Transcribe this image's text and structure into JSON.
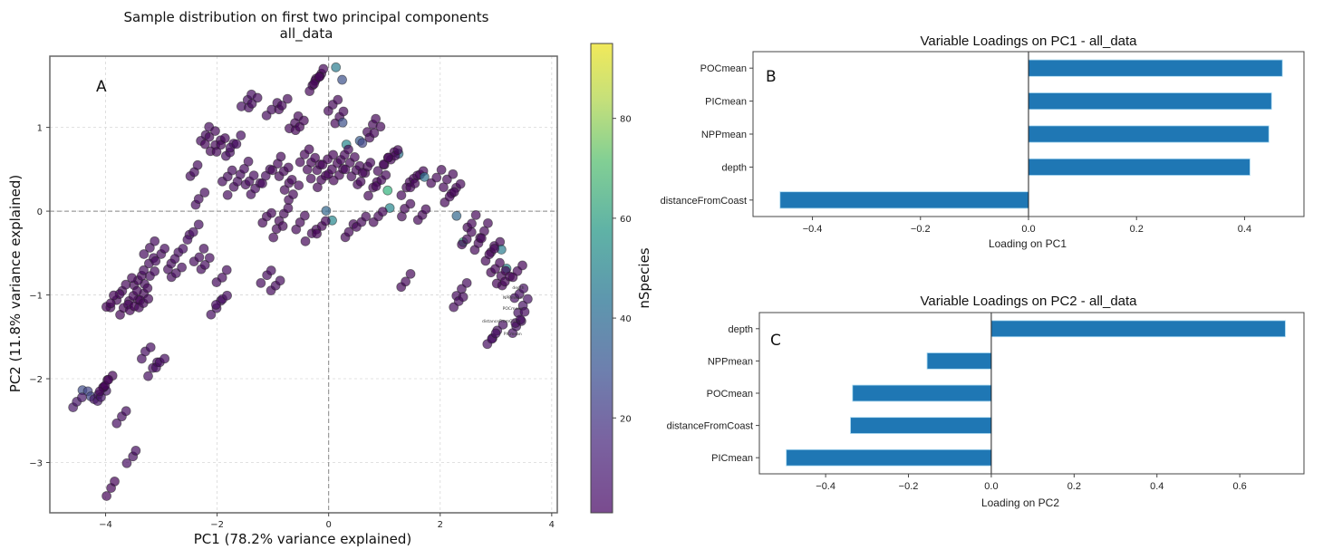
{
  "chart_data": [
    {
      "type": "scatter",
      "panel_label": "A",
      "title": "Sample distribution on first two principal components",
      "subtitle": "all_data",
      "xlabel": "PC1 (78.2% variance explained)",
      "ylabel": "PC2 (11.8% variance explained)",
      "xlim": [
        -5.0,
        4.1
      ],
      "ylim": [
        -3.6,
        1.85
      ],
      "xticks": [
        -4,
        -2,
        0,
        2,
        4
      ],
      "xtick_labels": [
        "−4",
        "−2",
        "0",
        "2",
        "4"
      ],
      "yticks": [
        -3,
        -2,
        -1,
        0,
        1
      ],
      "ytick_labels": [
        "−3",
        "−2",
        "−1",
        "0",
        "1"
      ],
      "grid": true,
      "reference_lines": {
        "x": 0,
        "y": 0
      },
      "colorbar": {
        "label": "nSpecies",
        "colormap": "viridis",
        "range": [
          1,
          95
        ],
        "ticks": [
          20,
          40,
          60,
          80
        ],
        "tick_labels": [
          "20",
          "40",
          "60",
          "80"
        ]
      },
      "loading_labels": [
        "depth",
        "NPPmean",
        "POCmean",
        "distanceFromCoast",
        "PICmean"
      ],
      "points": [
        {
          "x": 0.15,
          "y": 1.7,
          "c": 50
        },
        {
          "x": 0.25,
          "y": 1.58,
          "c": 30
        },
        {
          "x": -0.3,
          "y": 1.5,
          "c": 3
        },
        {
          "x": -0.25,
          "y": 1.55,
          "c": 3
        },
        {
          "x": -0.35,
          "y": 1.45,
          "c": 3
        },
        {
          "x": -1.55,
          "y": 1.25,
          "c": 5
        },
        {
          "x": -1.45,
          "y": 1.22,
          "c": 4
        },
        {
          "x": -1.1,
          "y": 1.15,
          "c": 4
        },
        {
          "x": -0.9,
          "y": 1.2,
          "c": 3
        },
        {
          "x": -0.7,
          "y": 1.0,
          "c": 3
        },
        {
          "x": -0.6,
          "y": 0.95,
          "c": 2
        },
        {
          "x": 0.0,
          "y": 1.2,
          "c": 3
        },
        {
          "x": 0.1,
          "y": 1.05,
          "c": 3
        },
        {
          "x": 0.25,
          "y": 1.05,
          "c": 30
        },
        {
          "x": 0.3,
          "y": 0.8,
          "c": 55
        },
        {
          "x": 0.55,
          "y": 0.85,
          "c": 35
        },
        {
          "x": 0.6,
          "y": 0.82,
          "c": 25
        },
        {
          "x": 0.7,
          "y": 0.95,
          "c": 3
        },
        {
          "x": 0.75,
          "y": 0.88,
          "c": 3
        },
        {
          "x": 1.25,
          "y": 0.7,
          "c": 45
        },
        {
          "x": 1.0,
          "y": 0.55,
          "c": 3
        },
        {
          "x": 1.1,
          "y": 0.6,
          "c": 3
        },
        {
          "x": 0.9,
          "y": 0.5,
          "c": 3
        },
        {
          "x": -2.3,
          "y": 0.85,
          "c": 4
        },
        {
          "x": -2.2,
          "y": 0.8,
          "c": 3
        },
        {
          "x": -2.1,
          "y": 0.7,
          "c": 3
        },
        {
          "x": -2.0,
          "y": 0.72,
          "c": 3
        },
        {
          "x": -1.85,
          "y": 0.65,
          "c": 5
        },
        {
          "x": -1.75,
          "y": 0.75,
          "c": 5
        },
        {
          "x": -2.5,
          "y": 0.4,
          "c": 4
        },
        {
          "x": -2.4,
          "y": 0.08,
          "c": 4
        },
        {
          "x": -1.9,
          "y": 0.35,
          "c": 4
        },
        {
          "x": -1.8,
          "y": 0.2,
          "c": 4
        },
        {
          "x": -1.6,
          "y": 0.45,
          "c": 4
        },
        {
          "x": -1.5,
          "y": 0.3,
          "c": 4
        },
        {
          "x": -1.4,
          "y": 0.2,
          "c": 4
        },
        {
          "x": -1.2,
          "y": 0.35,
          "c": 4
        },
        {
          "x": -1.0,
          "y": 0.5,
          "c": 3
        },
        {
          "x": -0.9,
          "y": 0.4,
          "c": 3
        },
        {
          "x": -0.8,
          "y": 0.25,
          "c": 3
        },
        {
          "x": -0.7,
          "y": 0.15,
          "c": 3
        },
        {
          "x": -0.5,
          "y": 0.6,
          "c": 2
        },
        {
          "x": -0.4,
          "y": 0.5,
          "c": 2
        },
        {
          "x": -0.3,
          "y": 0.4,
          "c": 2
        },
        {
          "x": -0.2,
          "y": 0.3,
          "c": 2
        },
        {
          "x": -0.1,
          "y": 0.55,
          "c": 2
        },
        {
          "x": 0.0,
          "y": 0.45,
          "c": 2
        },
        {
          "x": 0.1,
          "y": 0.35,
          "c": 2
        },
        {
          "x": 0.2,
          "y": 0.6,
          "c": 3
        },
        {
          "x": 0.3,
          "y": 0.5,
          "c": 3
        },
        {
          "x": 0.4,
          "y": 0.4,
          "c": 3
        },
        {
          "x": 0.5,
          "y": 0.3,
          "c": 3
        },
        {
          "x": 0.6,
          "y": 0.45,
          "c": 3
        },
        {
          "x": 0.7,
          "y": 0.2,
          "c": 3
        },
        {
          "x": 0.85,
          "y": 0.3,
          "c": 3
        },
        {
          "x": 1.05,
          "y": 0.25,
          "c": 70
        },
        {
          "x": 1.1,
          "y": 0.05,
          "c": 55
        },
        {
          "x": 1.3,
          "y": 0.2,
          "c": 3
        },
        {
          "x": 1.45,
          "y": 0.3,
          "c": 3
        },
        {
          "x": 1.55,
          "y": 0.35,
          "c": 3
        },
        {
          "x": 1.7,
          "y": 0.4,
          "c": 45
        },
        {
          "x": 1.85,
          "y": 0.35,
          "c": 3
        },
        {
          "x": 2.05,
          "y": 0.3,
          "c": 3
        },
        {
          "x": 2.2,
          "y": 0.2,
          "c": 3
        },
        {
          "x": 2.1,
          "y": 0.1,
          "c": 3
        },
        {
          "x": -0.05,
          "y": 0.0,
          "c": 40
        },
        {
          "x": 0.05,
          "y": -0.1,
          "c": 55
        },
        {
          "x": -0.6,
          "y": -0.2,
          "c": 3
        },
        {
          "x": -0.9,
          "y": -0.1,
          "c": 3
        },
        {
          "x": -1.2,
          "y": -0.15,
          "c": 3
        },
        {
          "x": -1.0,
          "y": -0.3,
          "c": 3
        },
        {
          "x": -0.4,
          "y": -0.35,
          "c": 3
        },
        {
          "x": -0.2,
          "y": -0.25,
          "c": 2
        },
        {
          "x": 0.3,
          "y": -0.3,
          "c": 3
        },
        {
          "x": 0.5,
          "y": -0.2,
          "c": 3
        },
        {
          "x": 0.8,
          "y": -0.15,
          "c": 3
        },
        {
          "x": 1.3,
          "y": -0.05,
          "c": 3
        },
        {
          "x": 1.6,
          "y": -0.1,
          "c": 3
        },
        {
          "x": 2.3,
          "y": -0.05,
          "c": 40
        },
        {
          "x": 2.5,
          "y": -0.2,
          "c": 3
        },
        {
          "x": 2.7,
          "y": -0.3,
          "c": 3
        },
        {
          "x": 2.4,
          "y": -0.35,
          "c": 70
        },
        {
          "x": 2.6,
          "y": -0.45,
          "c": 3
        },
        {
          "x": 2.9,
          "y": -0.5,
          "c": 3
        },
        {
          "x": 3.1,
          "y": -0.45,
          "c": 50
        },
        {
          "x": 3.2,
          "y": -0.7,
          "c": 55
        },
        {
          "x": 2.8,
          "y": -0.6,
          "c": 3
        },
        {
          "x": 2.9,
          "y": -0.75,
          "c": 2
        },
        {
          "x": 3.0,
          "y": -0.85,
          "c": 2
        },
        {
          "x": 3.1,
          "y": -0.9,
          "c": 2
        },
        {
          "x": 3.3,
          "y": -0.8,
          "c": 2
        },
        {
          "x": 2.4,
          "y": -0.4,
          "c": 3
        },
        {
          "x": 1.3,
          "y": -0.9,
          "c": 3
        },
        {
          "x": 2.3,
          "y": -1.0,
          "c": 4
        },
        {
          "x": 2.25,
          "y": -1.15,
          "c": 4
        },
        {
          "x": 2.95,
          "y": -1.5,
          "c": 5
        },
        {
          "x": 2.85,
          "y": -1.58,
          "c": 5
        },
        {
          "x": 3.3,
          "y": -1.45,
          "c": 6
        },
        {
          "x": 3.35,
          "y": -1.05,
          "c": 6
        },
        {
          "x": 3.4,
          "y": -1.2,
          "c": 6
        },
        {
          "x": 3.35,
          "y": -1.35,
          "c": 4
        },
        {
          "x": -1.05,
          "y": -0.95,
          "c": 4
        },
        {
          "x": -1.2,
          "y": -0.85,
          "c": 4
        },
        {
          "x": -2.0,
          "y": -0.85,
          "c": 4
        },
        {
          "x": -2.5,
          "y": -0.3,
          "c": 5
        },
        {
          "x": -2.7,
          "y": -0.5,
          "c": 5
        },
        {
          "x": -2.3,
          "y": -0.7,
          "c": 4
        },
        {
          "x": -3.3,
          "y": -0.85,
          "c": 4
        },
        {
          "x": -3.5,
          "y": -0.9,
          "c": 3
        },
        {
          "x": -3.7,
          "y": -0.95,
          "c": 3
        },
        {
          "x": -3.4,
          "y": -1.05,
          "c": 3
        },
        {
          "x": -3.3,
          "y": -0.7,
          "c": 4
        },
        {
          "x": -3.1,
          "y": -0.6,
          "c": 4
        },
        {
          "x": -2.9,
          "y": -0.7,
          "c": 4
        },
        {
          "x": -2.8,
          "y": -0.8,
          "c": 4
        },
        {
          "x": -2.1,
          "y": -1.22,
          "c": 5
        },
        {
          "x": -2.0,
          "y": -1.13,
          "c": 5
        },
        {
          "x": -3.9,
          "y": -1.13,
          "c": 3
        },
        {
          "x": -4.0,
          "y": -1.15,
          "c": 2
        },
        {
          "x": -3.75,
          "y": -1.22,
          "c": 2
        },
        {
          "x": -3.6,
          "y": -1.1,
          "c": 3
        },
        {
          "x": -3.55,
          "y": -1.2,
          "c": 2
        },
        {
          "x": -3.4,
          "y": -1.17,
          "c": 3
        },
        {
          "x": -3.3,
          "y": -0.5,
          "c": 4
        },
        {
          "x": -2.4,
          "y": -0.6,
          "c": 4
        },
        {
          "x": -3.35,
          "y": -1.75,
          "c": 5
        },
        {
          "x": -3.25,
          "y": -1.95,
          "c": 5
        },
        {
          "x": -3.1,
          "y": -1.88,
          "c": 5
        },
        {
          "x": -4.4,
          "y": -2.12,
          "c": 28
        },
        {
          "x": -4.3,
          "y": -2.15,
          "c": 25
        },
        {
          "x": -4.25,
          "y": -2.2,
          "c": 25
        },
        {
          "x": -4.2,
          "y": -2.25,
          "c": 8
        },
        {
          "x": -4.15,
          "y": -2.28,
          "c": 8
        },
        {
          "x": -4.05,
          "y": -2.1,
          "c": 2
        },
        {
          "x": -4.1,
          "y": -2.17,
          "c": 2
        },
        {
          "x": -4.6,
          "y": -2.35,
          "c": 8
        },
        {
          "x": -3.8,
          "y": -2.53,
          "c": 5
        },
        {
          "x": -3.6,
          "y": -3.0,
          "c": 5
        },
        {
          "x": -4.0,
          "y": -3.38,
          "c": 2
        }
      ]
    },
    {
      "type": "bar",
      "orientation": "horizontal",
      "panel_label": "B",
      "title": "Variable Loadings on PC1 - all_data",
      "xlabel": "Loading on PC1",
      "categories": [
        "POCmean",
        "PICmean",
        "NPPmean",
        "depth",
        "distanceFromCoast"
      ],
      "values": [
        0.47,
        0.45,
        0.445,
        0.41,
        -0.46
      ],
      "xlim": [
        -0.51,
        0.51
      ],
      "xticks": [
        -0.4,
        -0.2,
        0.0,
        0.2,
        0.4
      ],
      "xtick_labels": [
        "−0.4",
        "−0.2",
        "0.0",
        "0.2",
        "0.4"
      ],
      "color": "#1f77b4"
    },
    {
      "type": "bar",
      "orientation": "horizontal",
      "panel_label": "C",
      "title": "Variable Loadings on PC2 - all_data",
      "xlabel": "Loading on PC2",
      "categories": [
        "depth",
        "NPPmean",
        "POCmean",
        "distanceFromCoast",
        "PICmean"
      ],
      "values": [
        0.71,
        -0.155,
        -0.335,
        -0.34,
        -0.495
      ],
      "xlim": [
        -0.56,
        0.755
      ],
      "xticks": [
        -0.4,
        -0.2,
        0.0,
        0.2,
        0.4,
        0.6
      ],
      "xtick_labels": [
        "−0.4",
        "−0.2",
        "0.0",
        "0.2",
        "0.4",
        "0.6"
      ],
      "color": "#1f77b4"
    }
  ]
}
